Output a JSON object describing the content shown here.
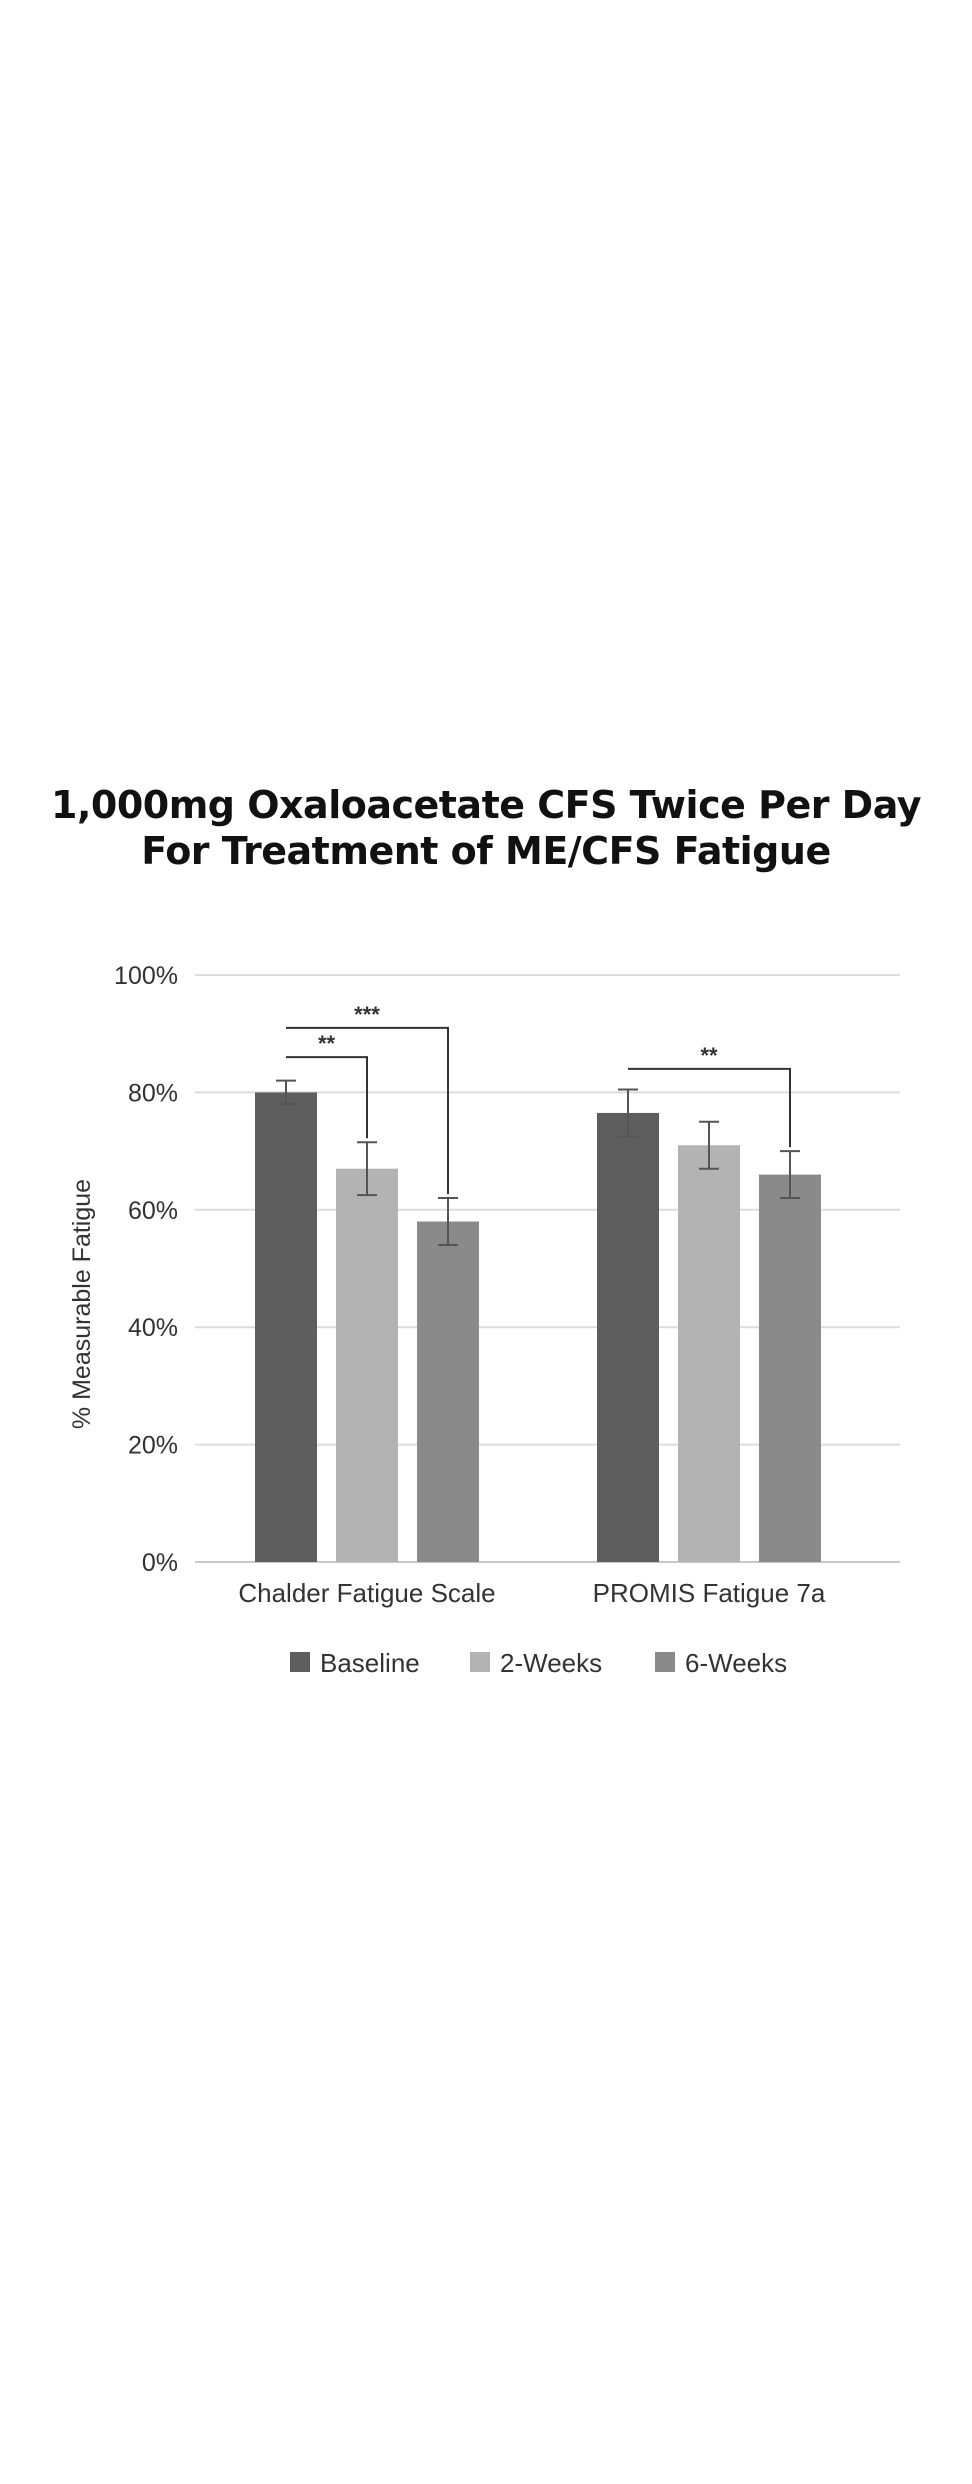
{
  "chart_data": {
    "type": "bar",
    "title_lines": [
      "1,000mg Oxaloacetate CFS Twice Per Day",
      "For Treatment of ME/CFS Fatigue"
    ],
    "ylabel": "% Measurable Fatigue",
    "ylim": [
      0,
      100
    ],
    "yticks": [
      "0%",
      "20%",
      "40%",
      "60%",
      "80%",
      "100%"
    ],
    "grid": true,
    "legend_position": "bottom",
    "categories": [
      "Chalder Fatigue Scale",
      "PROMIS Fatigue 7a"
    ],
    "series": [
      {
        "name": "Baseline",
        "color": "#5e5e5e",
        "values": [
          80,
          76.5
        ],
        "errors": [
          2,
          4
        ]
      },
      {
        "name": "2-Weeks",
        "color": "#b3b3b3",
        "values": [
          67,
          71
        ],
        "errors": [
          4.5,
          4
        ]
      },
      {
        "name": "6-Weeks",
        "color": "#8a8a8a",
        "values": [
          58,
          66
        ],
        "errors": [
          4,
          4
        ]
      }
    ],
    "annotations": [
      {
        "category": 0,
        "from": 0,
        "to": 1,
        "level": 86,
        "label": "**"
      },
      {
        "category": 0,
        "from": 0,
        "to": 2,
        "level": 91,
        "label": "***"
      },
      {
        "category": 1,
        "from": 0,
        "to": 2,
        "level": 84,
        "label": "**"
      }
    ]
  }
}
